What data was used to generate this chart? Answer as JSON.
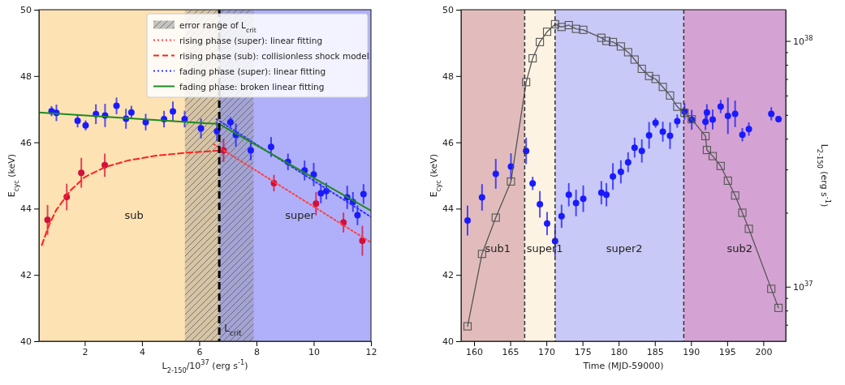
{
  "chart_data": [
    {
      "type": "scatter",
      "xlabel": "L$_{2-150}$/10$^{37}$ (erg s$^{-1}$)",
      "ylabel": "E$_{cyc}$ (keV)",
      "xlim": [
        0.4,
        12
      ],
      "xticks": [
        2,
        4,
        6,
        8,
        10,
        12
      ],
      "ylim": [
        40,
        50
      ],
      "yticks": [
        40,
        42,
        44,
        46,
        48,
        50
      ],
      "grid": false,
      "legend": "top right",
      "marker": "circle",
      "bands": [
        {
          "axis": "x",
          "from": 0.4,
          "to": 6.7,
          "color": "#fde2b3"
        },
        {
          "axis": "x",
          "from": 6.7,
          "to": 12,
          "color": "#b0b0fa"
        },
        {
          "axis": "x",
          "from": 5.5,
          "to": 7.9,
          "color": "#8c8c8c",
          "label": "error range of L$_{crit}$"
        }
      ],
      "ref_lines": [
        {
          "axis": "x",
          "value": 6.7,
          "label": "L$_{crit}$",
          "color": "#000000",
          "line_style": "dashed"
        }
      ],
      "annotations": [
        "sub",
        "super"
      ],
      "series": [
        {
          "color": "#1a1aff",
          "x": [
            0.84,
            1.01,
            1.75,
            2.03,
            2.39,
            2.71,
            3.11,
            3.44,
            3.63,
            4.13,
            4.77,
            5.08,
            5.49,
            6.06,
            6.62,
            7.09,
            7.28,
            7.8,
            8.51,
            9.1,
            9.68,
            10.0,
            10.25,
            10.44,
            11.17,
            11.37,
            11.53,
            11.74
          ],
          "values": [
            46.94,
            46.89,
            46.65,
            46.51,
            46.85,
            46.81,
            47.1,
            46.71,
            46.9,
            46.61,
            46.7,
            46.93,
            46.7,
            46.42,
            46.33,
            46.61,
            46.22,
            45.76,
            45.86,
            45.41,
            45.15,
            45.03,
            44.46,
            44.53,
            44.34,
            44.2,
            43.8,
            44.44
          ],
          "errors": [
            0.15,
            0.25,
            0.2,
            0.15,
            0.3,
            0.35,
            0.25,
            0.3,
            0.2,
            0.25,
            0.25,
            0.3,
            0.25,
            0.3,
            0.3,
            0.15,
            0.35,
            0.3,
            0.3,
            0.25,
            0.3,
            0.35,
            0.3,
            0.25,
            0.35,
            0.3,
            0.3,
            0.3
          ]
        },
        {
          "color": "#d0103a",
          "x": [
            0.7,
            1.37,
            1.88,
            2.7,
            6.85,
            8.61,
            10.08,
            11.04,
            11.7
          ],
          "values": [
            43.66,
            44.35,
            45.08,
            45.31,
            45.76,
            44.77,
            44.15,
            43.58,
            43.03
          ],
          "errors": [
            0.45,
            0.4,
            0.45,
            0.35,
            0.35,
            0.25,
            0.35,
            0.3,
            0.45
          ]
        },
        {
          "type": "line",
          "name": "rising phase (super): linear fitting",
          "color": "#ff4040",
          "line_style": "dotted",
          "marker": "none",
          "x": [
            6.5,
            12
          ],
          "values": [
            45.95,
            42.98
          ]
        },
        {
          "type": "line",
          "name": "rising phase (sub): collisionless shock model",
          "color": "#ff2020",
          "line_style": "dashed",
          "marker": "none",
          "x": [
            0.5,
            0.75,
            1,
            1.5,
            2,
            2.7,
            3.5,
            4.5,
            5.5,
            6.7
          ],
          "values": [
            42.9,
            43.5,
            43.95,
            44.55,
            44.95,
            45.25,
            45.45,
            45.6,
            45.68,
            45.75
          ]
        },
        {
          "type": "line",
          "name": "fading phase (super): linear fitting",
          "color": "#3333ff",
          "line_style": "dotted",
          "marker": "none",
          "x": [
            6.6,
            12
          ],
          "values": [
            46.7,
            43.75
          ]
        },
        {
          "type": "line",
          "name": "fading phase: broken linear fitting",
          "color": "#1e8a1e",
          "line_style": "solid",
          "marker": "none",
          "x": [
            0.4,
            6.7,
            12
          ],
          "values": [
            46.9,
            46.55,
            43.94
          ]
        }
      ]
    },
    {
      "type": "scatter",
      "xlabel": "Time (MJD-59000)",
      "ylabel": "E$_{cyc}$ (keV)",
      "y2label": "L$_{2-150}$ (erg s$^{-1}$)",
      "xlim": [
        158.2,
        203.1
      ],
      "xticks": [
        160,
        165,
        170,
        175,
        180,
        185,
        190,
        195,
        200
      ],
      "ylim": [
        40,
        50
      ],
      "yticks": [
        40,
        42,
        44,
        46,
        48,
        50
      ],
      "y2lim": [
        6e+36,
        1.34e+38
      ],
      "y2ticks": [
        {
          "value": 7e+36,
          "label": null
        },
        {
          "value": 8e+36,
          "label": null
        },
        {
          "value": 9e+36,
          "label": null
        },
        {
          "value": 1e+37,
          "label": "10$^{37}$"
        },
        {
          "value": 2e+37,
          "label": null
        },
        {
          "value": 3e+37,
          "label": null
        },
        {
          "value": 4e+37,
          "label": null
        },
        {
          "value": 5e+37,
          "label": null
        },
        {
          "value": 6e+37,
          "label": null
        },
        {
          "value": 7e+37,
          "label": null
        },
        {
          "value": 8e+37,
          "label": null
        },
        {
          "value": 9e+37,
          "label": null
        },
        {
          "value": 1e+38,
          "label": "10$^{38}$"
        }
      ],
      "log": "y2",
      "grid": false,
      "legend": false,
      "marker": "circle",
      "bands": [
        {
          "axis": "x",
          "from": 158.2,
          "to": 167,
          "color": "#e2bcbc"
        },
        {
          "axis": "x",
          "from": 167,
          "to": 171.2,
          "color": "#fdf3e2"
        },
        {
          "axis": "x",
          "from": 171.2,
          "to": 189,
          "color": "#c9c9f8"
        },
        {
          "axis": "x",
          "from": 189,
          "to": 203.1,
          "color": "#d4a3d3"
        }
      ],
      "ref_lines": [
        {
          "axis": "x",
          "value": 167,
          "color": "#333333",
          "line_style": "dashed"
        },
        {
          "axis": "x",
          "value": 171.2,
          "color": "#333333",
          "line_style": "dashed"
        },
        {
          "axis": "x",
          "value": 189,
          "color": "#333333",
          "line_style": "dashed"
        }
      ],
      "annotations": [
        "sub1",
        "super1",
        "super2",
        "sub2"
      ],
      "x": [
        159.1,
        161.1,
        163.0,
        165.1,
        167.2,
        168.1,
        169.1,
        170.1,
        171.2,
        172.1,
        173.1,
        174.1,
        175.1,
        177.6,
        178.3,
        179.2,
        180.3,
        181.3,
        182.2,
        183.2,
        184.2,
        185.1,
        186.1,
        187.1,
        188.1,
        189.1,
        190.1,
        192.0,
        192.2,
        193.0,
        194.1,
        195.1,
        196.1,
        197.1,
        198.0,
        201.1,
        202.1
      ],
      "series": [
        {
          "color": "#1a1aff",
          "values": [
            43.64,
            44.34,
            45.05,
            45.27,
            45.74,
            44.76,
            44.13,
            43.55,
            43.02,
            43.77,
            44.42,
            44.17,
            44.3,
            44.48,
            44.42,
            44.97,
            45.11,
            45.4,
            45.84,
            45.74,
            46.21,
            46.59,
            46.32,
            46.2,
            46.64,
            46.93,
            46.68,
            46.62,
            46.9,
            46.69,
            47.08,
            46.8,
            46.86,
            46.23,
            46.4,
            46.86,
            46.7
          ],
          "errors": [
            0.45,
            0.4,
            0.45,
            0.4,
            0.4,
            0.2,
            0.4,
            0.35,
            0.45,
            0.35,
            0.35,
            0.4,
            0.4,
            0.35,
            0.35,
            0.4,
            0.35,
            0.3,
            0.3,
            0.35,
            0.4,
            0.15,
            0.3,
            0.4,
            0.2,
            0.25,
            0.3,
            0.25,
            0.25,
            0.3,
            0.2,
            0.55,
            0.4,
            0.2,
            0.2,
            0.2,
            0.1
          ]
        },
        {
          "type": "line",
          "axis": "y2",
          "color": "#555555",
          "marker": "square",
          "line_style": "solid",
          "values": [
            6.9e+36,
            1.36e+37,
            1.91e+37,
            2.68e+37,
            6.8e+37,
            8.5e+37,
            9.9e+37,
            1.09e+38,
            1.17e+38,
            1.14e+38,
            1.16e+38,
            1.12e+38,
            1.11e+38,
            1.03e+38,
            1e+38,
            9.9e+37,
            9.5e+37,
            9e+37,
            8.4e+37,
            7.7e+37,
            7.2e+37,
            7e+37,
            6.5e+37,
            6e+37,
            5.4e+37,
            5.1e+37,
            4.8e+37,
            4.1e+37,
            3.6e+37,
            3.4e+37,
            3.1e+37,
            2.7e+37,
            2.35e+37,
            2e+37,
            1.72e+37,
            9.8e+36,
            8.2e+36
          ]
        }
      ]
    }
  ]
}
